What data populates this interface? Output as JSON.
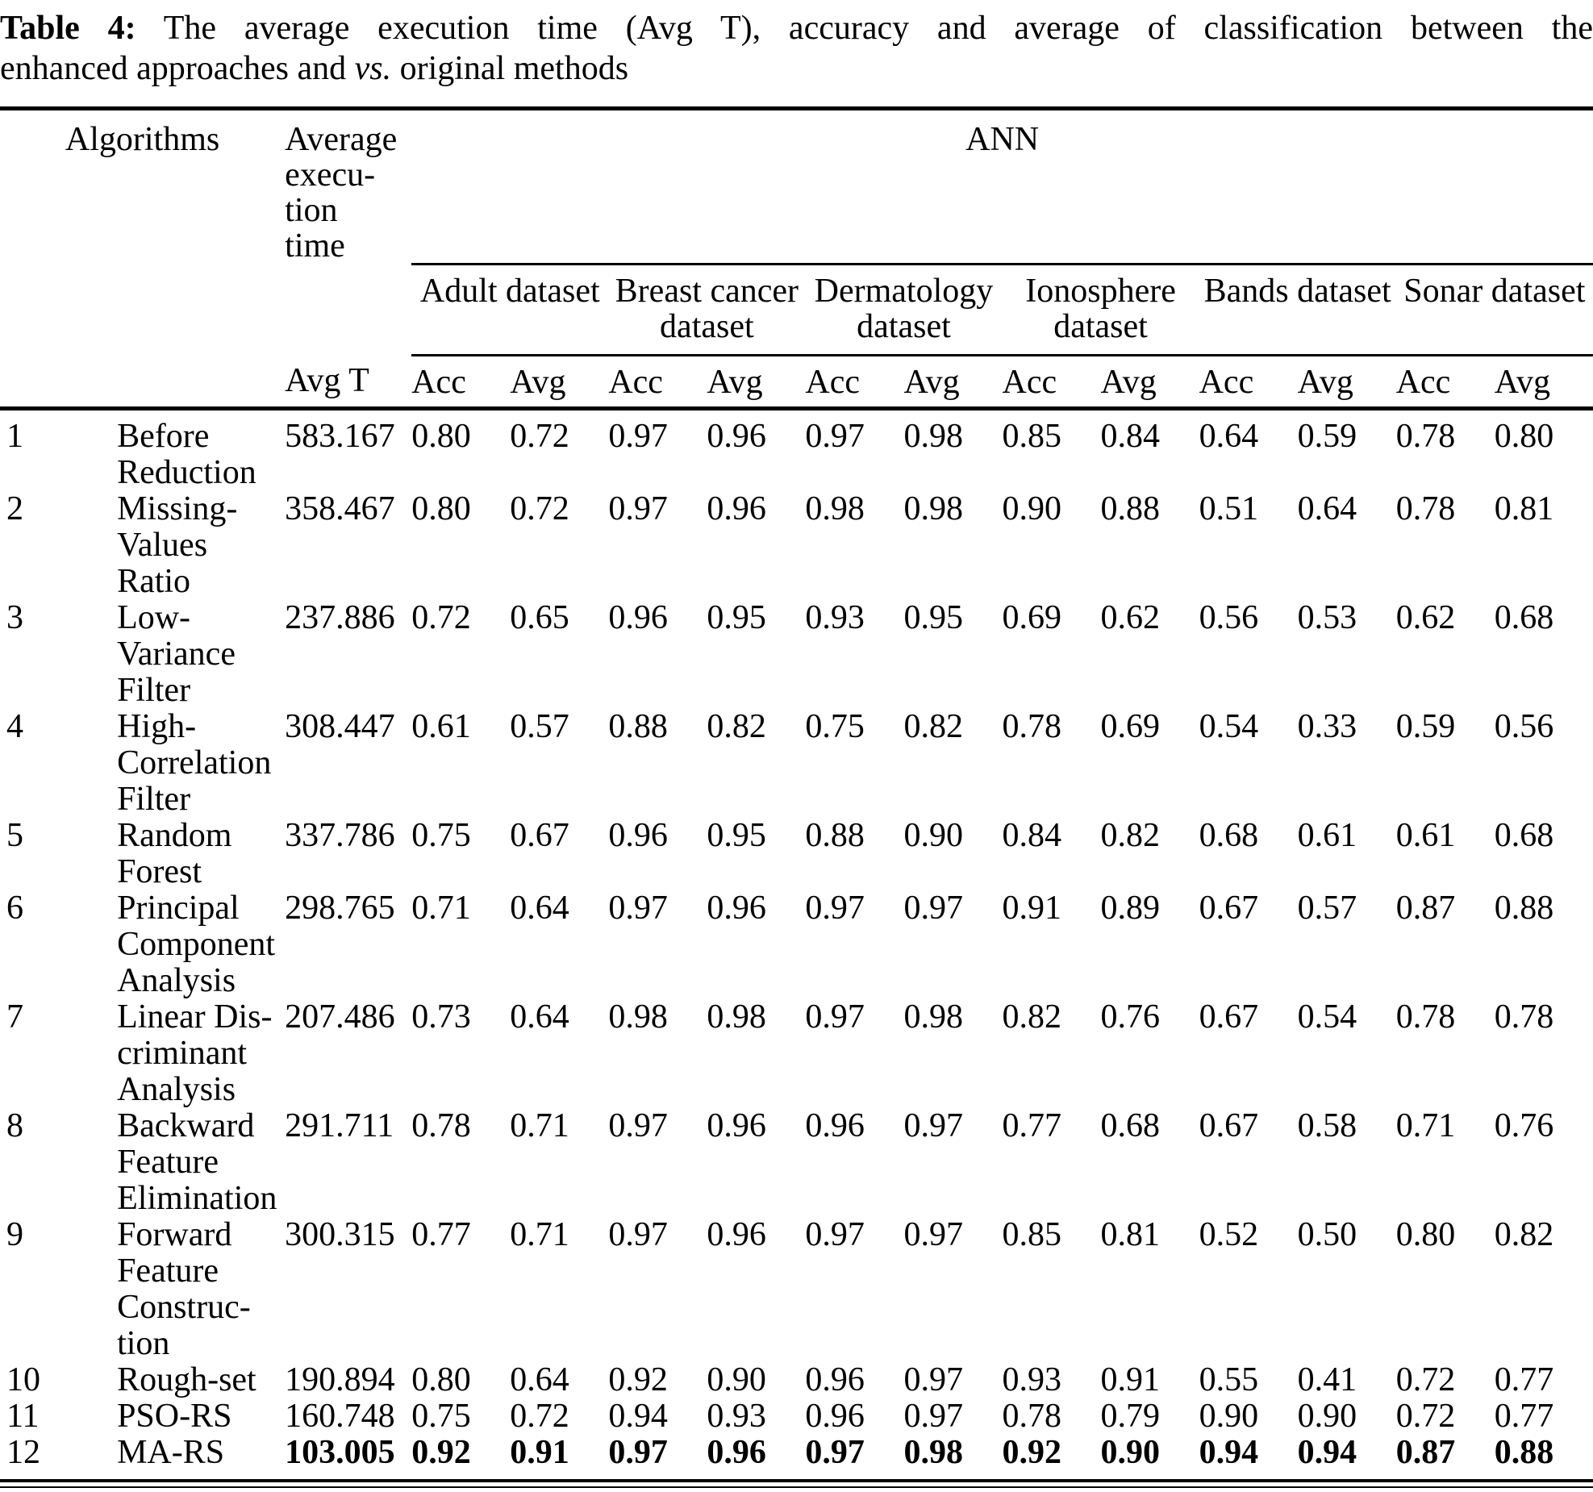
{
  "colors": {
    "text": "#000000",
    "background": "#ffffff"
  },
  "title": {
    "label": "Table 4:",
    "line1": "The average execution time (Avg T), accuracy and average of classification between the",
    "line2_pre": "enhanced approaches and",
    "line2_italic": "vs.",
    "line2_post": "original methods"
  },
  "table": {
    "header": {
      "algorithms": "Algorithms",
      "avg_exec": [
        "Average",
        "execu-",
        "tion",
        "time"
      ],
      "group": "ANN",
      "avg_t": "Avg T",
      "subheaders": [
        "Acc",
        "Avg"
      ],
      "datasets": [
        {
          "label": [
            "Adult dataset"
          ]
        },
        {
          "label": [
            "Breast cancer",
            "dataset"
          ]
        },
        {
          "label": [
            "Dermatology",
            "dataset"
          ]
        },
        {
          "label": [
            "Ionosphere",
            "dataset"
          ]
        },
        {
          "label": [
            "Bands dataset"
          ]
        },
        {
          "label": [
            "Sonar dataset"
          ]
        }
      ]
    },
    "rows": [
      {
        "num": "1",
        "name": [
          "Before",
          "Reduction"
        ],
        "avg_t": "583.167",
        "bold": false,
        "values": [
          "0.80",
          "0.72",
          "0.97",
          "0.96",
          "0.97",
          "0.98",
          "0.85",
          "0.84",
          "0.64",
          "0.59",
          "0.78",
          "0.80"
        ]
      },
      {
        "num": "2",
        "name": [
          "Missing-",
          "Values",
          "Ratio"
        ],
        "avg_t": "358.467",
        "bold": false,
        "values": [
          "0.80",
          "0.72",
          "0.97",
          "0.96",
          "0.98",
          "0.98",
          "0.90",
          "0.88",
          "0.51",
          "0.64",
          "0.78",
          "0.81"
        ]
      },
      {
        "num": "3",
        "name": [
          "Low-",
          "Variance",
          "Filter"
        ],
        "avg_t": "237.886",
        "bold": false,
        "values": [
          "0.72",
          "0.65",
          "0.96",
          "0.95",
          "0.93",
          "0.95",
          "0.69",
          "0.62",
          "0.56",
          "0.53",
          "0.62",
          "0.68"
        ]
      },
      {
        "num": "4",
        "name": [
          "High-",
          "Correlation",
          "Filter"
        ],
        "avg_t": "308.447",
        "bold": false,
        "values": [
          "0.61",
          "0.57",
          "0.88",
          "0.82",
          "0.75",
          "0.82",
          "0.78",
          "0.69",
          "0.54",
          "0.33",
          "0.59",
          "0.56"
        ]
      },
      {
        "num": "5",
        "name": [
          "Random",
          "Forest"
        ],
        "avg_t": "337.786",
        "bold": false,
        "values": [
          "0.75",
          "0.67",
          "0.96",
          "0.95",
          "0.88",
          "0.90",
          "0.84",
          "0.82",
          "0.68",
          "0.61",
          "0.61",
          "0.68"
        ]
      },
      {
        "num": "6",
        "name": [
          "Principal",
          "Component",
          "Analysis"
        ],
        "avg_t": "298.765",
        "bold": false,
        "values": [
          "0.71",
          "0.64",
          "0.97",
          "0.96",
          "0.97",
          "0.97",
          "0.91",
          "0.89",
          "0.67",
          "0.57",
          "0.87",
          "0.88"
        ]
      },
      {
        "num": "7",
        "name": [
          "Linear Dis-",
          "criminant",
          "Analysis"
        ],
        "avg_t": "207.486",
        "bold": false,
        "values": [
          "0.73",
          "0.64",
          "0.98",
          "0.98",
          "0.97",
          "0.98",
          "0.82",
          "0.76",
          "0.67",
          "0.54",
          "0.78",
          "0.78"
        ]
      },
      {
        "num": "8",
        "name": [
          "Backward",
          "Feature",
          "Elimination"
        ],
        "avg_t": "291.711",
        "bold": false,
        "values": [
          "0.78",
          "0.71",
          "0.97",
          "0.96",
          "0.96",
          "0.97",
          "0.77",
          "0.68",
          "0.67",
          "0.58",
          "0.71",
          "0.76"
        ]
      },
      {
        "num": "9",
        "name": [
          "Forward",
          "Feature",
          "Construc-",
          "tion"
        ],
        "avg_t": "300.315",
        "bold": false,
        "values": [
          "0.77",
          "0.71",
          "0.97",
          "0.96",
          "0.97",
          "0.97",
          "0.85",
          "0.81",
          "0.52",
          "0.50",
          "0.80",
          "0.82"
        ]
      },
      {
        "num": "10",
        "name": [
          "Rough-set"
        ],
        "avg_t": "190.894",
        "bold": false,
        "values": [
          "0.80",
          "0.64",
          "0.92",
          "0.90",
          "0.96",
          "0.97",
          "0.93",
          "0.91",
          "0.55",
          "0.41",
          "0.72",
          "0.77"
        ]
      },
      {
        "num": "11",
        "name": [
          "PSO-RS"
        ],
        "avg_t": "160.748",
        "bold": false,
        "values": [
          "0.75",
          "0.72",
          "0.94",
          "0.93",
          "0.96",
          "0.97",
          "0.78",
          "0.79",
          "0.90",
          "0.90",
          "0.72",
          "0.77"
        ]
      },
      {
        "num": "12",
        "name": [
          "MA-RS"
        ],
        "avg_t": "103.005",
        "bold": true,
        "values": [
          "0.92",
          "0.91",
          "0.97",
          "0.96",
          "0.97",
          "0.98",
          "0.92",
          "0.90",
          "0.94",
          "0.94",
          "0.87",
          "0.88"
        ]
      }
    ]
  }
}
